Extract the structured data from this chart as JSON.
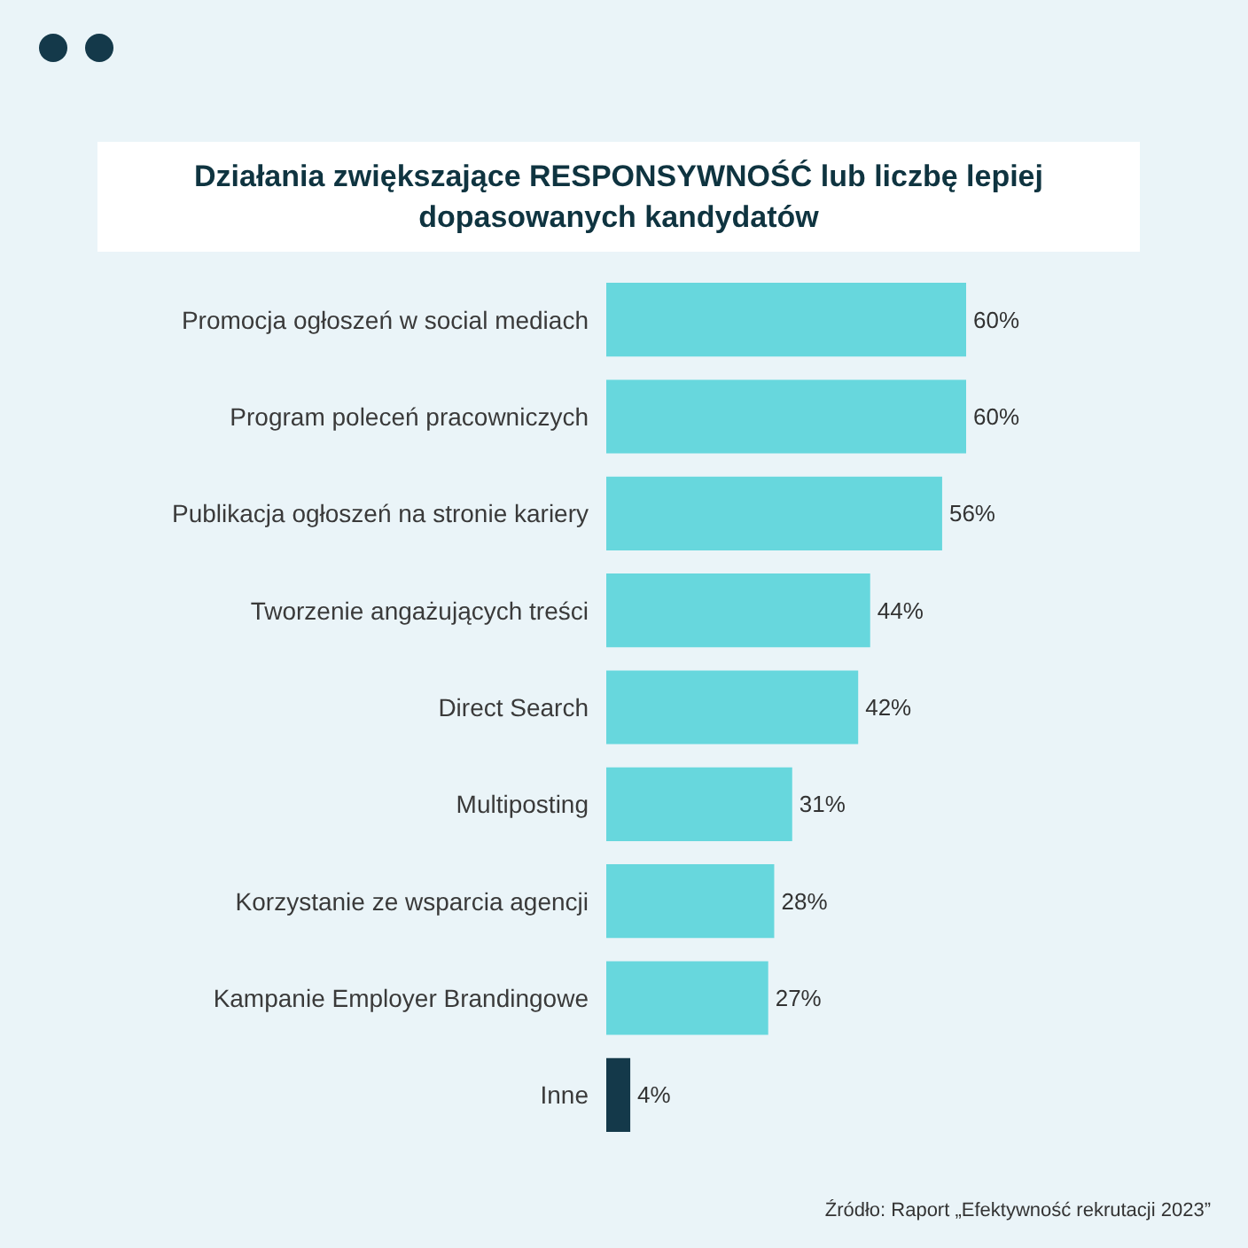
{
  "chart_data": {
    "type": "bar",
    "orientation": "horizontal",
    "title": "Działania zwiększające RESPONSYWNOŚĆ lub liczbę lepiej dopasowanych kandydatów",
    "categories": [
      "Promocja ogłoszeń w social mediach",
      "Program poleceń pracowniczych",
      "Publikacja ogłoszeń na stronie kariery",
      "Tworzenie angażujących treści",
      "Direct Search",
      "Multiposting",
      "Korzystanie ze wsparcia agencji",
      "Kampanie Employer Brandingowe",
      "Inne"
    ],
    "values": [
      60,
      60,
      56,
      44,
      42,
      31,
      28,
      27,
      4
    ],
    "colors": [
      "#67d7dd",
      "#67d7dd",
      "#67d7dd",
      "#67d7dd",
      "#67d7dd",
      "#67d7dd",
      "#67d7dd",
      "#67d7dd",
      "#14394a"
    ],
    "value_labels": [
      "60%",
      "60%",
      "56%",
      "44%",
      "42%",
      "31%",
      "28%",
      "27%",
      "4%"
    ],
    "tick_labels": "y",
    "annotations": [
      "Źródło: Raport „Efektywność rekrutacji 2023”"
    ]
  }
}
